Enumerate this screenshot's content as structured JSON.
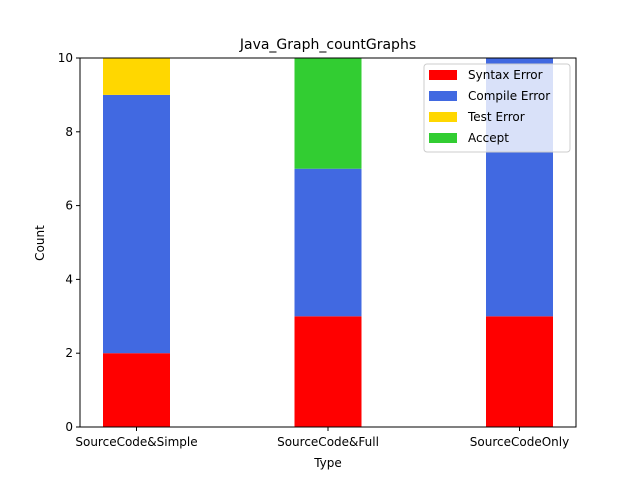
{
  "chart_data": {
    "type": "bar",
    "stacked": true,
    "title": "Java_Graph_countGraphs",
    "xlabel": "Type",
    "ylabel": "Count",
    "ylim": [
      0,
      10
    ],
    "yticks": [
      0,
      2,
      4,
      6,
      8,
      10
    ],
    "categories": [
      "SourceCode&Simple",
      "SourceCode&Full",
      "SourceCodeOnly"
    ],
    "series": [
      {
        "name": "Syntax Error",
        "color": "#ff0000",
        "values": [
          2,
          3,
          3
        ]
      },
      {
        "name": "Compile Error",
        "color": "#4169e1",
        "values": [
          7,
          4,
          7
        ]
      },
      {
        "name": "Test Error",
        "color": "#ffd700",
        "values": [
          1,
          0,
          0
        ]
      },
      {
        "name": "Accept",
        "color": "#32cd32",
        "values": [
          0,
          3,
          0
        ]
      }
    ],
    "legend_position": "top-right",
    "grid": false
  }
}
